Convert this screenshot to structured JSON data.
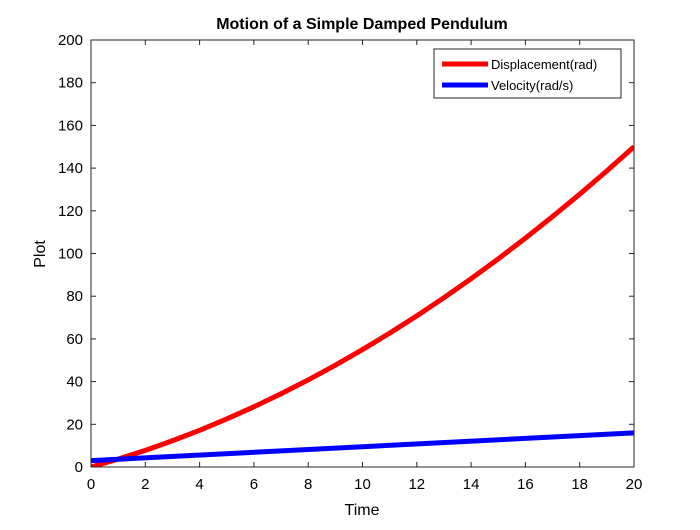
{
  "chart_data": {
    "type": "line",
    "title": "Motion of a Simple Damped Pendulum",
    "xlabel": "Time",
    "ylabel": "Plot",
    "xlim": [
      0,
      20
    ],
    "ylim": [
      0,
      200
    ],
    "xticks": [
      0,
      2,
      4,
      6,
      8,
      10,
      12,
      14,
      16,
      18,
      20
    ],
    "yticks": [
      0,
      20,
      40,
      60,
      80,
      100,
      120,
      140,
      160,
      180,
      200
    ],
    "grid": false,
    "legend_position": "top-right",
    "series": [
      {
        "name": "Displacement(rad)",
        "color": "#ff0000",
        "x": [
          0,
          1,
          2,
          3,
          4,
          5,
          6,
          7,
          8,
          9,
          10,
          11,
          12,
          13,
          14,
          15,
          16,
          17,
          18,
          19,
          20
        ],
        "y": [
          0,
          3.7,
          7.8,
          12.3,
          17.2,
          22.5,
          28.2,
          34.3,
          40.8,
          47.7,
          55,
          62.7,
          70.8,
          79.3,
          88.2,
          97.5,
          107.2,
          117.3,
          127.8,
          138.7,
          150
        ]
      },
      {
        "name": "Velocity(rad/s)",
        "color": "#0000ff",
        "x": [
          0,
          20
        ],
        "y": [
          3,
          16
        ]
      }
    ]
  }
}
